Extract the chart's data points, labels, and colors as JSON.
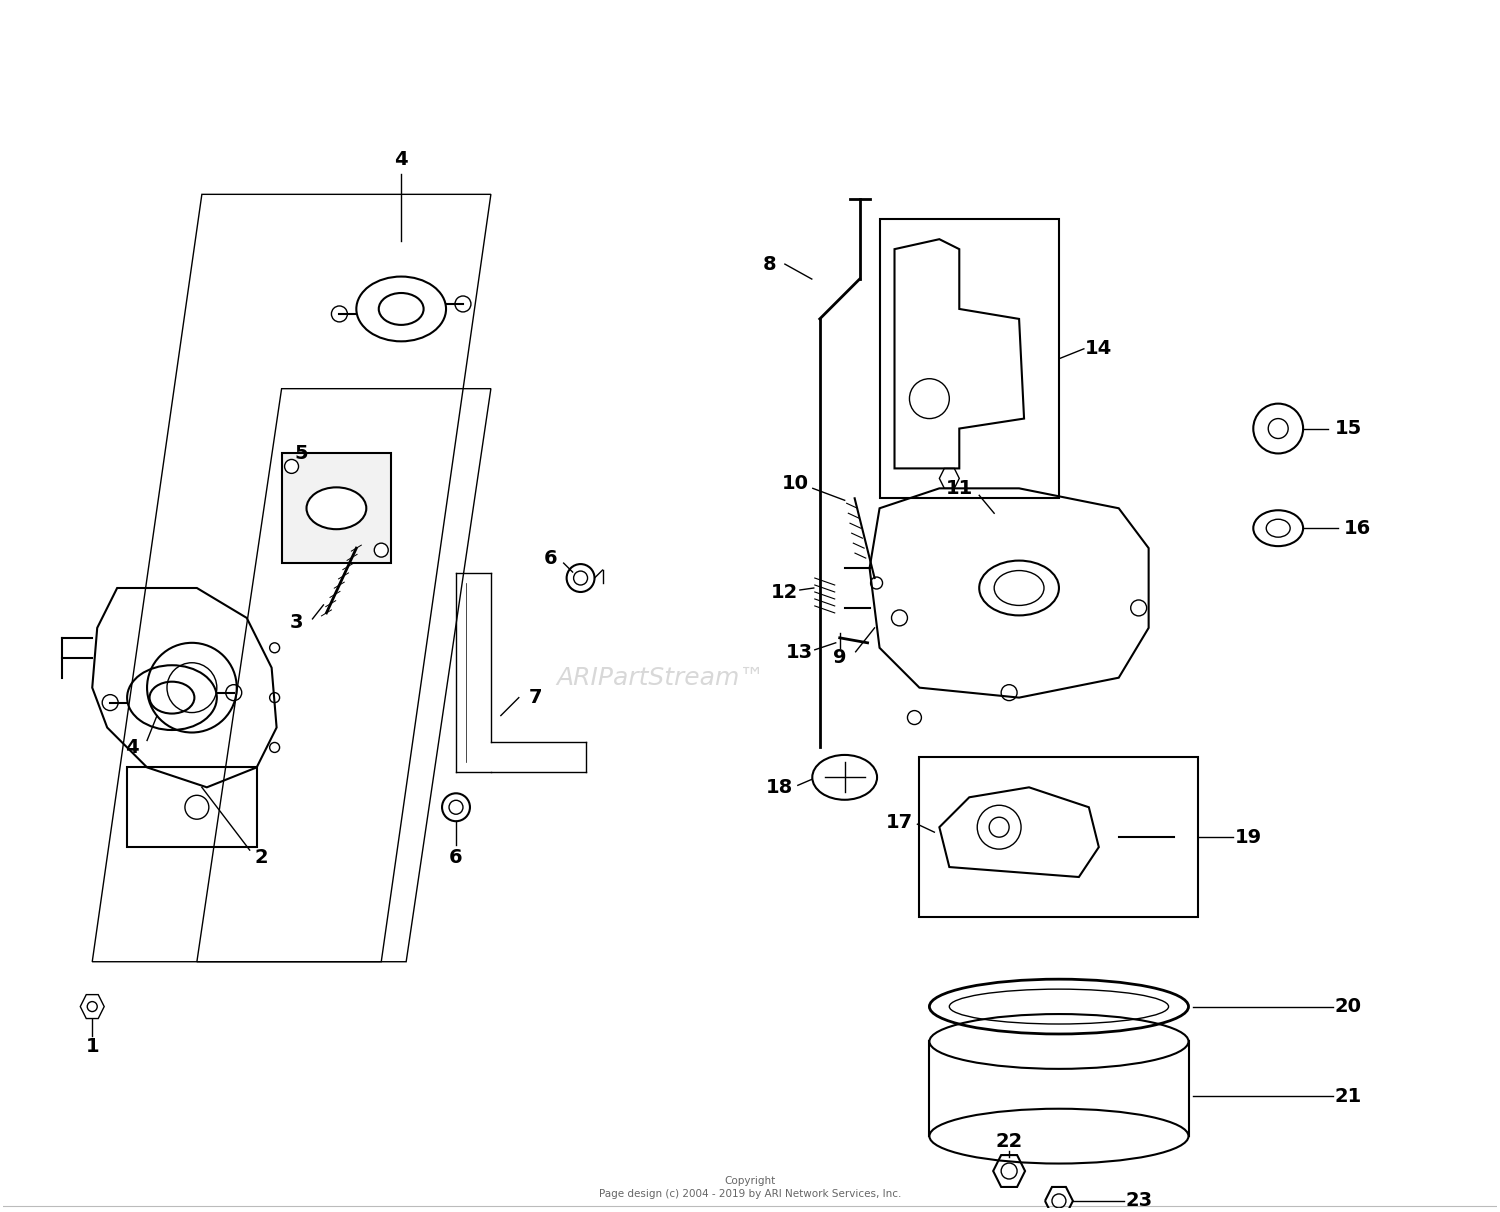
{
  "bg_color": "#ffffff",
  "line_color": "#000000",
  "label_color": "#000000",
  "watermark_color": "#c8c8c8",
  "watermark_text": "ARIPartStream™",
  "copyright_line1": "Copyright",
  "copyright_line2": "Page design (c) 2004 - 2019 by ARI Network Services, Inc.",
  "figsize": [
    15.0,
    12.12
  ],
  "dpi": 100
}
